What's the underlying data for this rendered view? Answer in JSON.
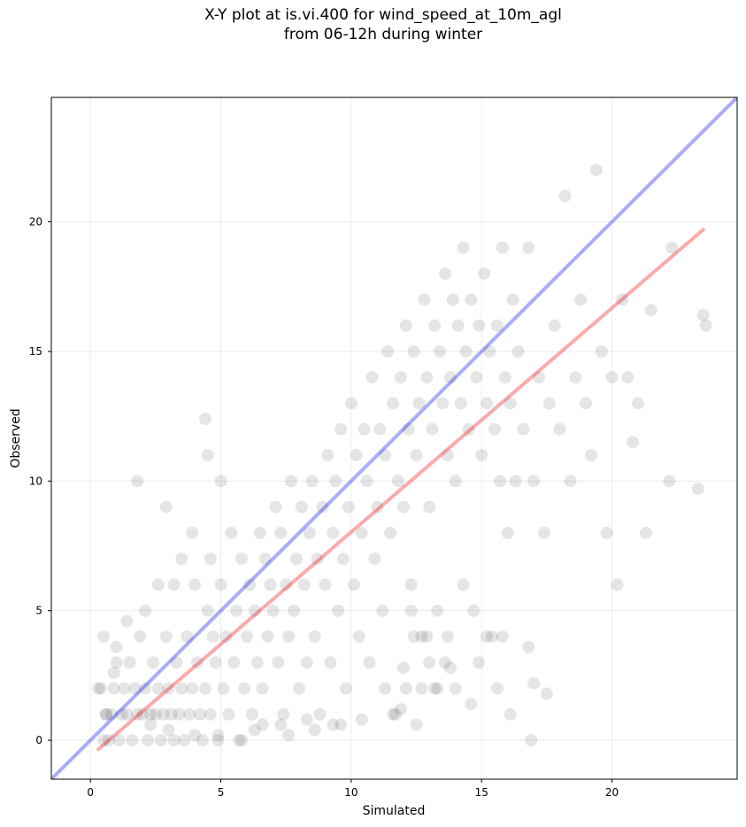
{
  "figure": {
    "title_lines": [
      "X-Y plot at is.vi.400 for wind_speed_at_10m_agl",
      "from 06-12h during winter"
    ]
  },
  "chart_data": {
    "type": "scatter",
    "title": "X-Y plot at is.vi.400 for wind_speed_at_10m_agl\nfrom 06-12h during winter",
    "xlabel": "Simulated",
    "ylabel": "Observed",
    "xlim": [
      -1.5,
      24.8
    ],
    "ylim": [
      -1.5,
      24.8
    ],
    "xticks": [
      0,
      5,
      10,
      15,
      20
    ],
    "yticks": [
      0,
      5,
      10,
      15,
      20
    ],
    "tick_labels": [
      "0",
      "5",
      "10",
      "15",
      "20"
    ],
    "grid": true,
    "colors": {
      "points": "#000000",
      "one_to_one_line": "#0000ee",
      "fit_line": "#ee0000",
      "grid": "#d9d9d9"
    },
    "lines": [
      {
        "role": "one-to-one",
        "x": [
          -1.5,
          24.8
        ],
        "y": [
          -1.5,
          24.8
        ]
      },
      {
        "role": "fit",
        "x": [
          0.3,
          23.5
        ],
        "y": [
          -0.35,
          19.7
        ]
      }
    ],
    "series": [
      {
        "marker": "circle",
        "alpha": 0.1,
        "points": [
          [
            0.5,
            4
          ],
          [
            0.4,
            2
          ],
          [
            0.6,
            1
          ],
          [
            0.8,
            1
          ],
          [
            0.7,
            0
          ],
          [
            0.9,
            2
          ],
          [
            1.0,
            3
          ],
          [
            1.1,
            0
          ],
          [
            1.2,
            1
          ],
          [
            1.3,
            2
          ],
          [
            1.4,
            1
          ],
          [
            1.5,
            3
          ],
          [
            1.6,
            0
          ],
          [
            1.7,
            2
          ],
          [
            1.8,
            1
          ],
          [
            1.9,
            4
          ],
          [
            2.0,
            1
          ],
          [
            2.1,
            2
          ],
          [
            2.2,
            0
          ],
          [
            2.3,
            1
          ],
          [
            2.4,
            3
          ],
          [
            2.5,
            1
          ],
          [
            2.6,
            2
          ],
          [
            2.7,
            0
          ],
          [
            2.8,
            1
          ],
          [
            2.9,
            4
          ],
          [
            3.0,
            2
          ],
          [
            3.1,
            1
          ],
          [
            3.2,
            0
          ],
          [
            3.3,
            3
          ],
          [
            3.4,
            1
          ],
          [
            3.5,
            2
          ],
          [
            3.6,
            0
          ],
          [
            3.7,
            4
          ],
          [
            3.8,
            1
          ],
          [
            3.9,
            2
          ],
          [
            4.0,
            6
          ],
          [
            4.1,
            3
          ],
          [
            4.2,
            1
          ],
          [
            4.3,
            0
          ],
          [
            4.4,
            2
          ],
          [
            4.5,
            5
          ],
          [
            4.6,
            1
          ],
          [
            4.7,
            4
          ],
          [
            4.8,
            3
          ],
          [
            4.9,
            0
          ],
          [
            5.0,
            6
          ],
          [
            5.1,
            2
          ],
          [
            5.2,
            4
          ],
          [
            5.3,
            1
          ],
          [
            5.4,
            8
          ],
          [
            5.5,
            3
          ],
          [
            5.6,
            5
          ],
          [
            5.7,
            0
          ],
          [
            5.8,
            7
          ],
          [
            5.9,
            2
          ],
          [
            6.0,
            4
          ],
          [
            6.1,
            6
          ],
          [
            6.2,
            1
          ],
          [
            6.3,
            5
          ],
          [
            6.4,
            3
          ],
          [
            6.5,
            8
          ],
          [
            6.6,
            2
          ],
          [
            6.7,
            7
          ],
          [
            6.8,
            4
          ],
          [
            6.9,
            6
          ],
          [
            7.0,
            5
          ],
          [
            7.1,
            9
          ],
          [
            7.2,
            3
          ],
          [
            7.3,
            8
          ],
          [
            7.4,
            1
          ],
          [
            7.5,
            6
          ],
          [
            7.6,
            4
          ],
          [
            7.7,
            10
          ],
          [
            7.8,
            5
          ],
          [
            7.9,
            7
          ],
          [
            8.0,
            2
          ],
          [
            8.1,
            9
          ],
          [
            8.2,
            6
          ],
          [
            8.3,
            3
          ],
          [
            8.4,
            8
          ],
          [
            8.5,
            10
          ],
          [
            8.6,
            4
          ],
          [
            8.7,
            7
          ],
          [
            8.8,
            1
          ],
          [
            8.9,
            9
          ],
          [
            9.0,
            6
          ],
          [
            9.1,
            11
          ],
          [
            9.2,
            3
          ],
          [
            9.3,
            8
          ],
          [
            9.4,
            10
          ],
          [
            9.5,
            5
          ],
          [
            9.6,
            12
          ],
          [
            9.7,
            7
          ],
          [
            9.8,
            2
          ],
          [
            9.9,
            9
          ],
          [
            10.0,
            13
          ],
          [
            10.1,
            6
          ],
          [
            10.2,
            11
          ],
          [
            10.3,
            4
          ],
          [
            10.4,
            8
          ],
          [
            10.5,
            12
          ],
          [
            10.6,
            10
          ],
          [
            10.7,
            3
          ],
          [
            10.8,
            14
          ],
          [
            10.9,
            7
          ],
          [
            11.0,
            9
          ],
          [
            11.1,
            12
          ],
          [
            11.2,
            5
          ],
          [
            11.3,
            11
          ],
          [
            11.4,
            15
          ],
          [
            11.5,
            8
          ],
          [
            11.6,
            13
          ],
          [
            11.7,
            1
          ],
          [
            11.8,
            10
          ],
          [
            11.9,
            14
          ],
          [
            12.0,
            9
          ],
          [
            12.1,
            16
          ],
          [
            12.2,
            12
          ],
          [
            12.3,
            6
          ],
          [
            12.4,
            15
          ],
          [
            12.5,
            11
          ],
          [
            12.6,
            13
          ],
          [
            12.7,
            4
          ],
          [
            12.8,
            17
          ],
          [
            12.9,
            14
          ],
          [
            13.0,
            9
          ],
          [
            13.1,
            12
          ],
          [
            13.2,
            16
          ],
          [
            13.3,
            2
          ],
          [
            13.4,
            15
          ],
          [
            13.5,
            13
          ],
          [
            13.6,
            18
          ],
          [
            13.7,
            11
          ],
          [
            13.8,
            14
          ],
          [
            13.9,
            17
          ],
          [
            14.0,
            10
          ],
          [
            14.1,
            16
          ],
          [
            14.2,
            13
          ],
          [
            14.3,
            19
          ],
          [
            14.4,
            15
          ],
          [
            14.5,
            12
          ],
          [
            14.6,
            17
          ],
          [
            14.7,
            5
          ],
          [
            14.8,
            14
          ],
          [
            14.9,
            16
          ],
          [
            15.0,
            11
          ],
          [
            15.1,
            18
          ],
          [
            15.2,
            13
          ],
          [
            15.3,
            15
          ],
          [
            15.4,
            4
          ],
          [
            15.5,
            12
          ],
          [
            15.6,
            16
          ],
          [
            15.7,
            10
          ],
          [
            15.8,
            19
          ],
          [
            15.9,
            14
          ],
          [
            16.0,
            8
          ],
          [
            16.1,
            13
          ],
          [
            16.2,
            17
          ],
          [
            16.3,
            10
          ],
          [
            16.4,
            15
          ],
          [
            16.6,
            12
          ],
          [
            16.8,
            19
          ],
          [
            17.0,
            10
          ],
          [
            17.2,
            14
          ],
          [
            17.4,
            8
          ],
          [
            17.6,
            13
          ],
          [
            17.8,
            16
          ],
          [
            18.0,
            12
          ],
          [
            18.2,
            21
          ],
          [
            18.4,
            10
          ],
          [
            18.6,
            14
          ],
          [
            18.8,
            17
          ],
          [
            19.0,
            13
          ],
          [
            19.2,
            11
          ],
          [
            19.4,
            22
          ],
          [
            19.6,
            15
          ],
          [
            19.8,
            8
          ],
          [
            20.0,
            14
          ],
          [
            20.2,
            6
          ],
          [
            20.4,
            17
          ],
          [
            20.6,
            14
          ],
          [
            20.8,
            11.5
          ],
          [
            21.0,
            13
          ],
          [
            21.3,
            8
          ],
          [
            21.5,
            16.6
          ],
          [
            22.2,
            10
          ],
          [
            22.3,
            19
          ],
          [
            23.3,
            9.7
          ],
          [
            23.5,
            16.4
          ],
          [
            23.6,
            16
          ],
          [
            16.8,
            3.6
          ],
          [
            16.9,
            0
          ],
          [
            17.5,
            1.8
          ],
          [
            17.0,
            2.2
          ],
          [
            16.1,
            1
          ],
          [
            15.6,
            2
          ],
          [
            14.9,
            3
          ],
          [
            14.6,
            1.4
          ],
          [
            13.8,
            2.8
          ],
          [
            13.0,
            3
          ],
          [
            12.5,
            0.6
          ],
          [
            11.9,
            1.2
          ],
          [
            11.6,
            1
          ],
          [
            12.0,
            2.8
          ],
          [
            11.3,
            2
          ],
          [
            10.4,
            0.8
          ],
          [
            9.6,
            0.6
          ],
          [
            8.6,
            0.4
          ],
          [
            7.6,
            0.2
          ],
          [
            6.6,
            0.6
          ],
          [
            5.8,
            0
          ],
          [
            4.9,
            0.2
          ],
          [
            4.4,
            12.4
          ],
          [
            4.5,
            11
          ],
          [
            1.8,
            10
          ],
          [
            2.9,
            9
          ],
          [
            5.0,
            10
          ],
          [
            3.9,
            8
          ],
          [
            4.6,
            7
          ],
          [
            3.5,
            7
          ],
          [
            3.2,
            6
          ],
          [
            2.6,
            6
          ],
          [
            2.1,
            5
          ],
          [
            1.4,
            4.6
          ],
          [
            1.0,
            3.6
          ],
          [
            0.9,
            2.6
          ],
          [
            0.6,
            1
          ],
          [
            0.3,
            2
          ],
          [
            0.5,
            0
          ],
          [
            2.3,
            0.6
          ],
          [
            3.0,
            0.4
          ],
          [
            4.0,
            0.2
          ],
          [
            6.3,
            0.4
          ],
          [
            7.3,
            0.6
          ],
          [
            8.3,
            0.8
          ],
          [
            9.3,
            0.6
          ],
          [
            15.2,
            4
          ],
          [
            15.8,
            4
          ],
          [
            14.3,
            6
          ],
          [
            12.9,
            4
          ],
          [
            12.3,
            5
          ],
          [
            13.3,
            5
          ],
          [
            13.7,
            4
          ],
          [
            14.0,
            2
          ],
          [
            13.2,
            2
          ],
          [
            13.6,
            3
          ],
          [
            12.7,
            2
          ],
          [
            12.1,
            2
          ],
          [
            12.4,
            4
          ]
        ]
      }
    ]
  }
}
